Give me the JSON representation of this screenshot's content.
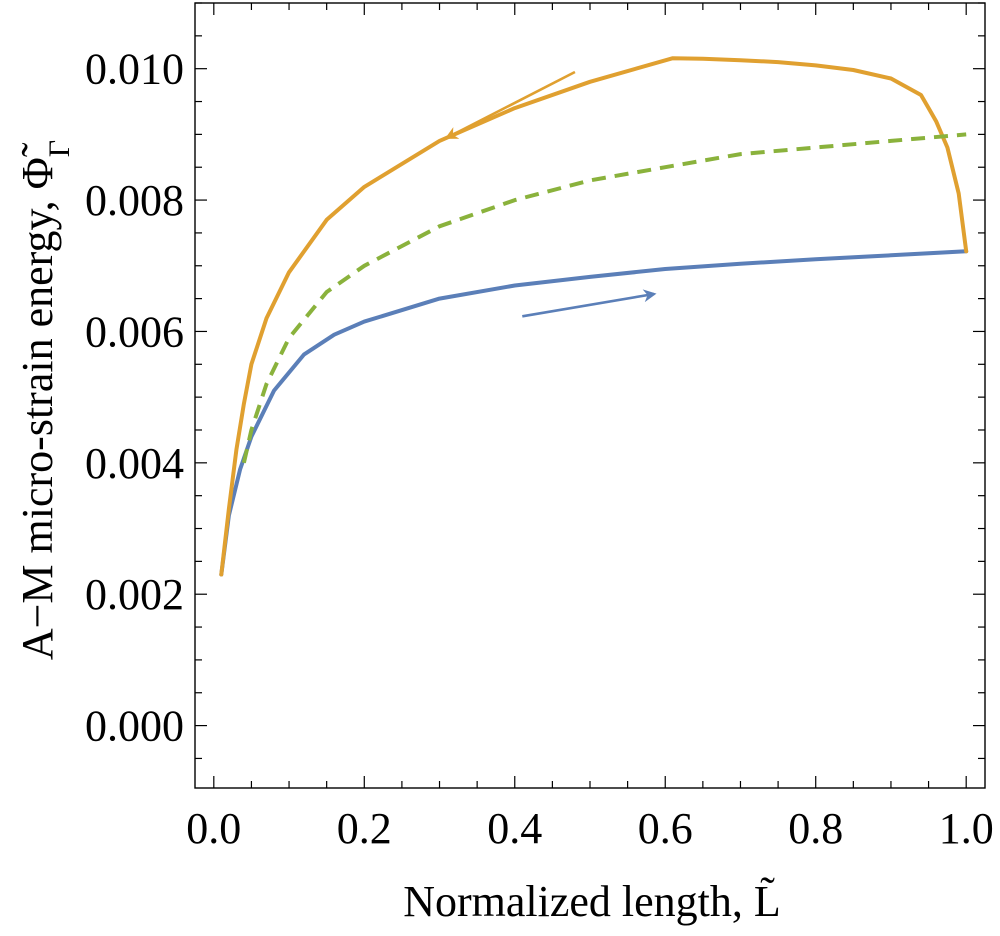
{
  "chart_data": {
    "type": "line",
    "title": "",
    "xlabel": "Normalized length, L̃",
    "ylabel": "A−M micro-strain energy, Φ̃",
    "ylabel_subscript": "Γ",
    "xlim": [
      -0.025,
      1.025
    ],
    "ylim": [
      -0.00095,
      0.011
    ],
    "xticks": [
      0.0,
      0.2,
      0.4,
      0.6,
      0.8,
      1.0
    ],
    "xtick_labels": [
      "0.0",
      "0.2",
      "0.4",
      "0.6",
      "0.8",
      "1.0"
    ],
    "yticks": [
      0.0,
      0.002,
      0.004,
      0.006,
      0.008,
      0.01
    ],
    "ytick_labels": [
      "0.000",
      "0.002",
      "0.004",
      "0.006",
      "0.008",
      "0.010"
    ],
    "grid": false,
    "series": [
      {
        "color": "#5b7fb8",
        "style": "solid",
        "x": [
          0.01,
          0.02,
          0.035,
          0.05,
          0.08,
          0.12,
          0.16,
          0.2,
          0.3,
          0.4,
          0.5,
          0.6,
          0.7,
          0.8,
          0.9,
          1.0
        ],
        "y": [
          0.0023,
          0.0032,
          0.0039,
          0.0044,
          0.0051,
          0.00565,
          0.00595,
          0.00615,
          0.0065,
          0.0067,
          0.00683,
          0.00695,
          0.00703,
          0.0071,
          0.00716,
          0.00722
        ]
      },
      {
        "color": "#e0a030",
        "style": "solid",
        "x": [
          1.0,
          0.99,
          0.975,
          0.96,
          0.95,
          0.94,
          0.9,
          0.85,
          0.8,
          0.75,
          0.7,
          0.65,
          0.61,
          0.5,
          0.4,
          0.3,
          0.2,
          0.15,
          0.1,
          0.07,
          0.05,
          0.04,
          0.03,
          0.02,
          0.01
        ],
        "y": [
          0.00722,
          0.0081,
          0.0088,
          0.0092,
          0.0094,
          0.0096,
          0.00985,
          0.00998,
          0.01005,
          0.0101,
          0.01013,
          0.01015,
          0.01016,
          0.0098,
          0.0094,
          0.0089,
          0.0082,
          0.0077,
          0.0069,
          0.0062,
          0.0055,
          0.0049,
          0.0042,
          0.0033,
          0.0023
        ]
      },
      {
        "color": "#8ab23c",
        "style": "dashed",
        "x": [
          0.04,
          0.05,
          0.07,
          0.1,
          0.15,
          0.2,
          0.3,
          0.4,
          0.5,
          0.6,
          0.7,
          0.8,
          0.9,
          1.0
        ],
        "y": [
          0.004,
          0.0045,
          0.0052,
          0.0059,
          0.0066,
          0.007,
          0.0076,
          0.008,
          0.0083,
          0.0085,
          0.0087,
          0.0088,
          0.0089,
          0.009
        ]
      }
    ],
    "annotations": [
      {
        "type": "arrow",
        "color": "#e0a030",
        "from": [
          0.48,
          0.00995
        ],
        "to": [
          0.31,
          0.00895
        ]
      },
      {
        "type": "arrow",
        "color": "#5b7fb8",
        "from": [
          0.41,
          0.00623
        ],
        "to": [
          0.585,
          0.00657
        ]
      }
    ]
  }
}
